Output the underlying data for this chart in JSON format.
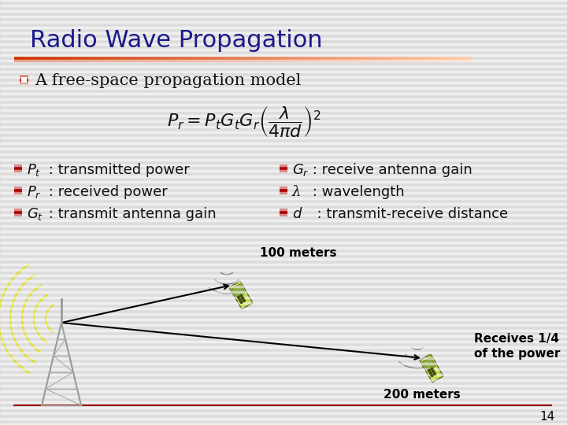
{
  "title": "Radio Wave Propagation",
  "title_color": "#1a1a8c",
  "title_fontsize": 22,
  "bg_color": "#dcdcdc",
  "stripe_color": "#ffffff",
  "bar_color_start": "#cc3300",
  "bar_color_end": "#ffccaa",
  "subtitle": "A free-space propagation model",
  "subtitle_fontsize": 15,
  "checkbox_color": "#cc2200",
  "bullet_color": "#aa0000",
  "bullet_items_left": [
    [
      "$P_t$",
      " : transmitted power"
    ],
    [
      "$P_r$",
      " : received power"
    ],
    [
      "$G_t$",
      " : transmit antenna gain"
    ]
  ],
  "bullet_items_right": [
    [
      "$G_r$",
      " : receive antenna gain"
    ],
    [
      "λ",
      " : wavelength"
    ],
    [
      "$d$",
      "  : transmit-receive distance"
    ]
  ],
  "formula": "$P_r = P_t G_t G_r \\left(\\dfrac{\\lambda}{4\\pi d}\\right)^2$",
  "label_100m": "100 meters",
  "label_200m": "200 meters",
  "label_receives": "Receives 1/4\nof the power",
  "page_number": "14",
  "text_color": "#111111"
}
